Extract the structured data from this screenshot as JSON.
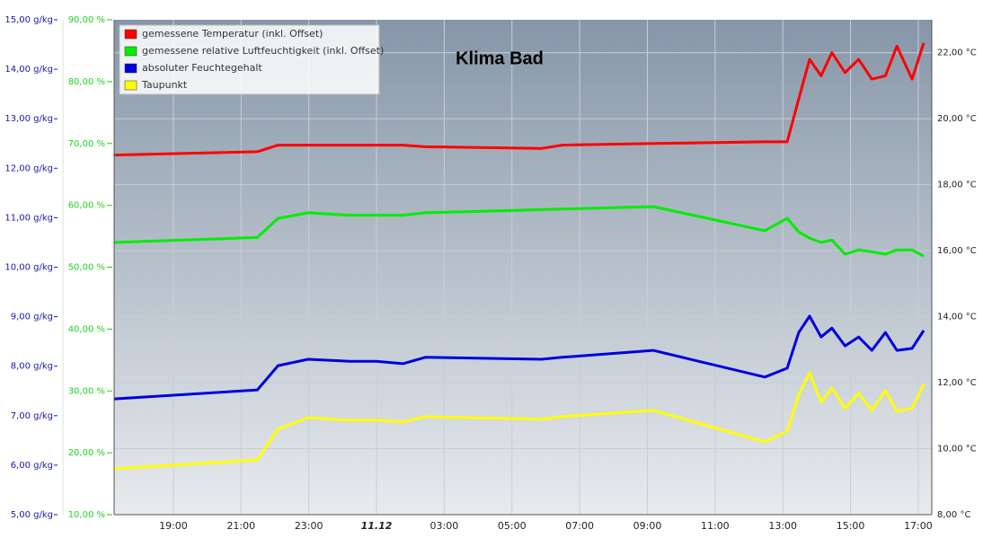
{
  "chart_data": {
    "type": "line",
    "title": "Klima Bad",
    "x": [
      17.26,
      21.48,
      22.09,
      22.98,
      24.2,
      24.99,
      25.78,
      26.44,
      29.87,
      30.48,
      33.17,
      36.47,
      37.13,
      37.47,
      37.79,
      38.13,
      38.45,
      38.84,
      39.24,
      39.63,
      40.03,
      40.37,
      40.82,
      41.16
    ],
    "xlim": [
      17.25,
      41.4
    ],
    "xticks": [
      {
        "value": 19,
        "label": "19:00"
      },
      {
        "value": 21,
        "label": "21:00"
      },
      {
        "value": 23,
        "label": "23:00"
      },
      {
        "value": 25,
        "label": "11.12"
      },
      {
        "value": 27,
        "label": "03:00"
      },
      {
        "value": 29,
        "label": "05:00"
      },
      {
        "value": 31,
        "label": "07:00"
      },
      {
        "value": 33,
        "label": "09:00"
      },
      {
        "value": 35,
        "label": "11:00"
      },
      {
        "value": 37,
        "label": "13:00"
      },
      {
        "value": 39,
        "label": "15:00"
      },
      {
        "value": 41,
        "label": "17:00"
      }
    ],
    "ylim": [
      5,
      15
    ],
    "yticks": [
      {
        "value": 5,
        "label": "5,00 g/kg"
      },
      {
        "value": 6,
        "label": "6,00 g/kg"
      },
      {
        "value": 7,
        "label": "7,00 g/kg"
      },
      {
        "value": 8,
        "label": "8,00 g/kg"
      },
      {
        "value": 9,
        "label": "9,00 g/kg"
      },
      {
        "value": 10,
        "label": "10,00 g/kg"
      },
      {
        "value": 11,
        "label": "11,00 g/kg"
      },
      {
        "value": 12,
        "label": "12,00 g/kg"
      },
      {
        "value": 13,
        "label": "13,00 g/kg"
      },
      {
        "value": 14,
        "label": "14,00 g/kg"
      },
      {
        "value": 15,
        "label": "15,00 g/kg"
      }
    ],
    "y2lim": [
      10,
      90
    ],
    "y2ticks": [
      {
        "value": 10,
        "label": "10,00 %"
      },
      {
        "value": 20,
        "label": "20,00 %"
      },
      {
        "value": 30,
        "label": "30,00 %"
      },
      {
        "value": 40,
        "label": "40,00 %"
      },
      {
        "value": 50,
        "label": "50,00 %"
      },
      {
        "value": 60,
        "label": "60,00 %"
      },
      {
        "value": 70,
        "label": "70,00 %"
      },
      {
        "value": 80,
        "label": "80,00 %"
      },
      {
        "value": 90,
        "label": "90,00 %"
      }
    ],
    "y3lim": [
      8,
      23
    ],
    "y3ticks": [
      {
        "value": 8,
        "label": "8,00 °C"
      },
      {
        "value": 10,
        "label": "10,00 °C"
      },
      {
        "value": 12,
        "label": "12,00 °C"
      },
      {
        "value": 14,
        "label": "14,00 °C"
      },
      {
        "value": 16,
        "label": "16,00 °C"
      },
      {
        "value": 18,
        "label": "18,00 °C"
      },
      {
        "value": 20,
        "label": "20,00 °C"
      },
      {
        "value": 22,
        "label": "22,00 °C"
      }
    ],
    "grid": true,
    "legend": "top-left",
    "series": [
      {
        "name": "gemessene Temperatur (inkl. Offset)",
        "color": "#ff0000",
        "axis": "y3",
        "values": [
          18.9,
          19.0,
          19.2,
          19.2,
          19.2,
          19.2,
          19.2,
          19.15,
          19.1,
          19.2,
          19.25,
          19.3,
          19.3,
          20.6,
          21.8,
          21.3,
          22.0,
          21.4,
          21.8,
          21.2,
          21.3,
          22.2,
          21.2,
          22.3
        ]
      },
      {
        "name": "gemessene relative Luftfeuchtigkeit (inkl. Offset)",
        "color": "#00ee00",
        "axis": "y2",
        "values": [
          54.0,
          54.8,
          57.9,
          58.8,
          58.4,
          58.4,
          58.4,
          58.8,
          59.3,
          59.4,
          59.8,
          55.9,
          57.9,
          55.7,
          54.7,
          54.0,
          54.4,
          52.1,
          52.8,
          52.5,
          52.1,
          52.8,
          52.8,
          51.8
        ]
      },
      {
        "name": "absoluter Feuchtegehalt",
        "color": "#0000dd",
        "axis": "y",
        "values": [
          7.34,
          7.52,
          8.01,
          8.14,
          8.1,
          8.1,
          8.05,
          8.18,
          8.14,
          8.18,
          8.32,
          7.78,
          7.96,
          8.68,
          9.01,
          8.59,
          8.77,
          8.41,
          8.59,
          8.32,
          8.68,
          8.32,
          8.36,
          8.72
        ]
      },
      {
        "name": "Taupunkt",
        "color": "#ffff00",
        "axis": "y3",
        "values": [
          9.39,
          9.66,
          10.59,
          10.94,
          10.86,
          10.86,
          10.81,
          10.97,
          10.89,
          10.97,
          11.16,
          10.21,
          10.53,
          11.62,
          12.3,
          11.41,
          11.84,
          11.22,
          11.68,
          11.16,
          11.76,
          11.13,
          11.22,
          11.95
        ]
      }
    ]
  }
}
